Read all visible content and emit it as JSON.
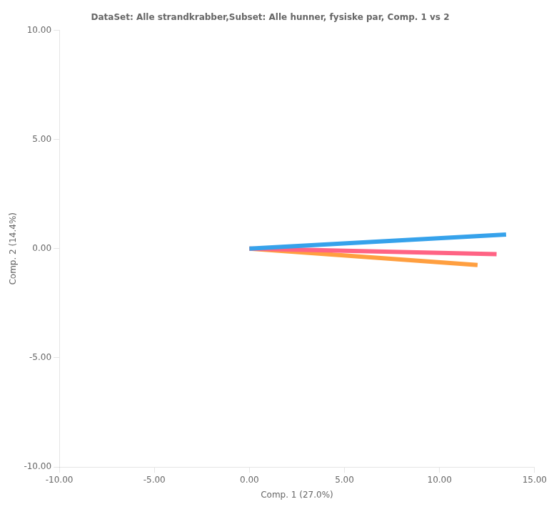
{
  "chart_data": {
    "type": "line",
    "title": "DataSet: Alle strandkrabber,Subset: Alle hunner, fysiske par, Comp. 1 vs 2",
    "xlabel": "Comp. 1 (27.0%)",
    "ylabel": "Comp. 2 (14.4%)",
    "xlim": [
      -10,
      15
    ],
    "ylim": [
      -10,
      10
    ],
    "xticks": [
      {
        "value": -10,
        "label": "-10.00"
      },
      {
        "value": -5,
        "label": "-5.00"
      },
      {
        "value": 0,
        "label": "0.00"
      },
      {
        "value": 5,
        "label": "5.00"
      },
      {
        "value": 10,
        "label": "10.00"
      },
      {
        "value": 15,
        "label": "15.00"
      }
    ],
    "yticks": [
      {
        "value": -10,
        "label": "-10.00"
      },
      {
        "value": -5,
        "label": "-5.00"
      },
      {
        "value": 0,
        "label": "0.00"
      },
      {
        "value": 5,
        "label": "5.00"
      },
      {
        "value": 10,
        "label": "10.00"
      }
    ],
    "grid": false,
    "series": [
      {
        "x": [
          0,
          13.5
        ],
        "values": [
          0,
          0.65
        ]
      },
      {
        "x": [
          0,
          13.0
        ],
        "values": [
          0,
          -0.25
        ]
      },
      {
        "x": [
          0,
          12.0
        ],
        "values": [
          0,
          -0.75
        ]
      }
    ]
  }
}
